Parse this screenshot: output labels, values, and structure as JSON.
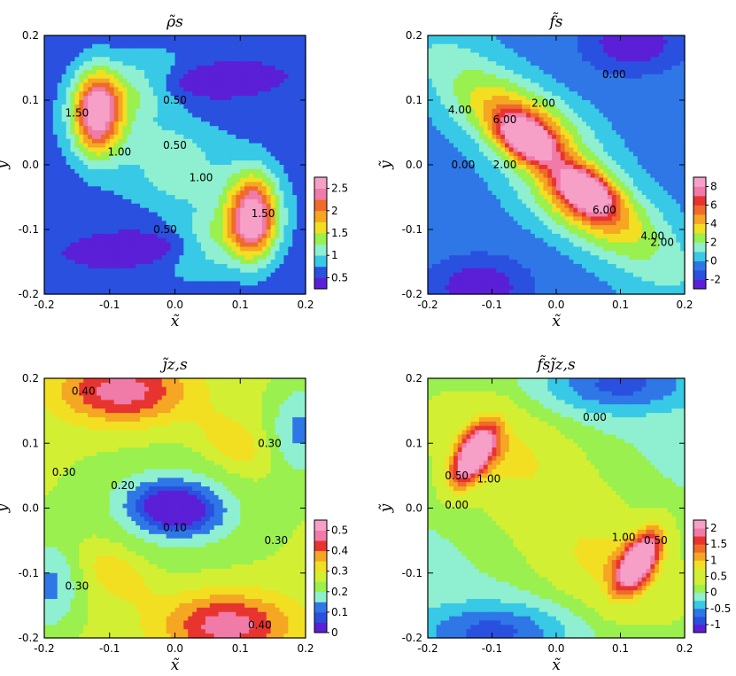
{
  "chart_data": [
    {
      "type": "heatmap",
      "title": "ρ̃s",
      "xlabel": "x̃",
      "ylabel": "ỹ",
      "xlim": [
        -0.2,
        0.2
      ],
      "ylim": [
        -0.2,
        0.2
      ],
      "xticks": [
        "-0.2",
        "-0.1",
        "0.0",
        "0.1",
        "0.2"
      ],
      "yticks": [
        "-0.2",
        "-0.1",
        "0.0",
        "0.1",
        "0.2"
      ],
      "colorbar": {
        "ticks": [
          "0.5",
          "1",
          "1.5",
          "2",
          "2.5"
        ],
        "tick_values": [
          0.5,
          1,
          1.5,
          2,
          2.5
        ],
        "range": [
          0.25,
          2.75
        ],
        "level_step": 0.25
      },
      "contour_labels": [
        {
          "text": "0.50",
          "x": 0.0,
          "y": 0.1
        },
        {
          "text": "0.50",
          "x": 0.0,
          "y": 0.03
        },
        {
          "text": "1.50",
          "x": -0.15,
          "y": 0.08
        },
        {
          "text": "1.00",
          "x": -0.085,
          "y": 0.02
        },
        {
          "text": "1.00",
          "x": 0.04,
          "y": -0.02
        },
        {
          "text": "1.50",
          "x": 0.135,
          "y": -0.075
        },
        {
          "text": "0.50",
          "x": -0.015,
          "y": -0.1
        }
      ],
      "extrema": [
        {
          "kind": "max",
          "x": -0.12,
          "y": 0.08,
          "value": 2.6
        },
        {
          "kind": "max",
          "x": 0.12,
          "y": -0.08,
          "value": 2.6
        },
        {
          "kind": "min",
          "x": 0.05,
          "y": 0.13,
          "value": 0.3
        },
        {
          "kind": "min",
          "x": -0.05,
          "y": -0.13,
          "value": 0.3
        }
      ]
    },
    {
      "type": "heatmap",
      "title": "f̃s",
      "xlabel": "x̃",
      "ylabel": "ỹ",
      "xlim": [
        -0.2,
        0.2
      ],
      "ylim": [
        -0.2,
        0.2
      ],
      "xticks": [
        "-0.2",
        "-0.1",
        "0.0",
        "0.1",
        "0.2"
      ],
      "yticks": [
        "-0.2",
        "-0.1",
        "0.0",
        "0.1",
        "0.2"
      ],
      "colorbar": {
        "ticks": [
          "-2",
          "0",
          "2",
          "4",
          "6",
          "8"
        ],
        "tick_values": [
          -2,
          0,
          2,
          4,
          6,
          8
        ],
        "range": [
          -3,
          9
        ],
        "level_step": 1
      },
      "contour_labels": [
        {
          "text": "0.00",
          "x": 0.09,
          "y": 0.14
        },
        {
          "text": "2.00",
          "x": -0.02,
          "y": 0.095
        },
        {
          "text": "4.00",
          "x": -0.15,
          "y": 0.085
        },
        {
          "text": "6.00",
          "x": -0.08,
          "y": 0.07
        },
        {
          "text": "2.00",
          "x": -0.08,
          "y": 0.0
        },
        {
          "text": "0.00",
          "x": -0.145,
          "y": -0.0
        },
        {
          "text": "6.00",
          "x": 0.075,
          "y": -0.07
        },
        {
          "text": "4.00",
          "x": 0.15,
          "y": -0.11
        },
        {
          "text": "2.00",
          "x": 0.165,
          "y": -0.12
        }
      ],
      "extrema": [
        {
          "kind": "max",
          "x": -0.04,
          "y": 0.04,
          "value": 8.5
        },
        {
          "kind": "max",
          "x": 0.04,
          "y": -0.04,
          "value": 8.5
        }
      ]
    },
    {
      "type": "heatmap",
      "title": "j̃z,s",
      "xlabel": "x̃",
      "ylabel": "ỹ",
      "xlim": [
        -0.2,
        0.2
      ],
      "ylim": [
        -0.2,
        0.2
      ],
      "xticks": [
        "-0.2",
        "-0.1",
        "0.0",
        "0.1",
        "0.2"
      ],
      "yticks": [
        "-0.2",
        "-0.1",
        "0.0",
        "0.1",
        "0.2"
      ],
      "colorbar": {
        "ticks": [
          "0",
          "0.1",
          "0.2",
          "0.3",
          "0.4",
          "0.5"
        ],
        "tick_values": [
          0,
          0.1,
          0.2,
          0.3,
          0.4,
          0.5
        ],
        "range": [
          0,
          0.55
        ],
        "level_step": 0.05
      },
      "contour_labels": [
        {
          "text": "0.40",
          "x": -0.14,
          "y": 0.18
        },
        {
          "text": "0.30",
          "x": 0.145,
          "y": 0.1
        },
        {
          "text": "0.30",
          "x": -0.17,
          "y": 0.055
        },
        {
          "text": "0.20",
          "x": -0.08,
          "y": 0.035
        },
        {
          "text": "0.10",
          "x": 0.0,
          "y": -0.03
        },
        {
          "text": "0.30",
          "x": 0.155,
          "y": -0.05
        },
        {
          "text": "0.30",
          "x": -0.15,
          "y": -0.12
        },
        {
          "text": "0.40",
          "x": 0.13,
          "y": -0.18
        }
      ],
      "extrema": [
        {
          "kind": "min",
          "x": 0.0,
          "y": 0.0,
          "value": 0.02
        },
        {
          "kind": "max",
          "x": -0.07,
          "y": 0.17,
          "value": 0.48
        },
        {
          "kind": "max",
          "x": 0.07,
          "y": -0.17,
          "value": 0.48
        }
      ]
    },
    {
      "type": "heatmap",
      "title": "f̃sj̃z,s",
      "xlabel": "x̃",
      "ylabel": "ỹ",
      "xlim": [
        -0.2,
        0.2
      ],
      "ylim": [
        -0.2,
        0.2
      ],
      "xticks": [
        "-0.2",
        "-0.1",
        "0.0",
        "0.1",
        "0.2"
      ],
      "yticks": [
        "-0.2",
        "-0.1",
        "0.0",
        "0.1",
        "0.2"
      ],
      "colorbar": {
        "ticks": [
          "-1",
          "-0.5",
          "0",
          "0.5",
          "1",
          "1.5",
          "2"
        ],
        "tick_values": [
          -1,
          -0.5,
          0,
          0.5,
          1,
          1.5,
          2
        ],
        "range": [
          -1.25,
          2.25
        ],
        "level_step": 0.25
      },
      "contour_labels": [
        {
          "text": "0.00",
          "x": 0.06,
          "y": 0.14
        },
        {
          "text": "0.50",
          "x": -0.155,
          "y": 0.05
        },
        {
          "text": "1.00",
          "x": -0.105,
          "y": 0.045
        },
        {
          "text": "0.00",
          "x": -0.155,
          "y": 0.005
        },
        {
          "text": "0.50",
          "x": 0.155,
          "y": -0.05
        },
        {
          "text": "1.00",
          "x": 0.105,
          "y": -0.045
        }
      ],
      "extrema": [
        {
          "kind": "max",
          "x": -0.13,
          "y": 0.08,
          "value": 2.1
        },
        {
          "kind": "max",
          "x": 0.13,
          "y": -0.08,
          "value": 2.1
        }
      ]
    }
  ]
}
